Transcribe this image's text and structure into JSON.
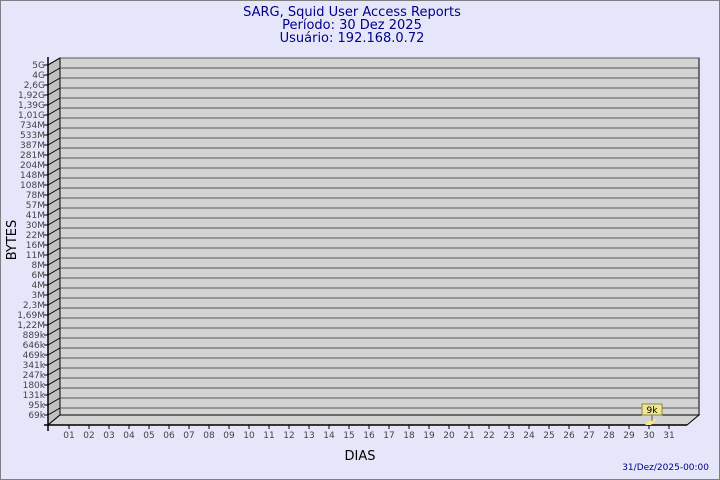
{
  "chart_data": {
    "type": "bar",
    "title": "SARG, Squid User Access Reports",
    "subtitle_lines": [
      "Período: 30 Dez 2025",
      "Usuário: 192.168.0.72"
    ],
    "xlabel": "DIAS",
    "ylabel": "BYTES",
    "y_scale": "log",
    "y_tick_labels": [
      "5G",
      "4G",
      "2,6G",
      "1,92G",
      "1,39G",
      "1,01G",
      "734M",
      "533M",
      "387M",
      "281M",
      "204M",
      "148M",
      "108M",
      "78M",
      "57M",
      "41M",
      "30M",
      "22M",
      "16M",
      "11M",
      "8M",
      "6M",
      "4M",
      "3M",
      "2,3M",
      "1,69M",
      "1,22M",
      "889k",
      "646k",
      "469k",
      "341k",
      "247k",
      "180k",
      "131k",
      "95k",
      "69k"
    ],
    "categories": [
      "01",
      "02",
      "03",
      "04",
      "05",
      "06",
      "07",
      "08",
      "09",
      "10",
      "11",
      "12",
      "13",
      "14",
      "15",
      "16",
      "17",
      "18",
      "19",
      "20",
      "21",
      "22",
      "23",
      "24",
      "25",
      "26",
      "27",
      "28",
      "29",
      "30",
      "31"
    ],
    "values": [
      {
        "day": "30",
        "bytes_label": "9k"
      }
    ],
    "grid": true,
    "colors": {
      "background": "#e6e6fa",
      "plot": "#d3d3d3",
      "title": "#00008b",
      "bar": "#ffe88c"
    }
  },
  "footer": {
    "timestamp": "31/Dez/2025-00:00"
  }
}
